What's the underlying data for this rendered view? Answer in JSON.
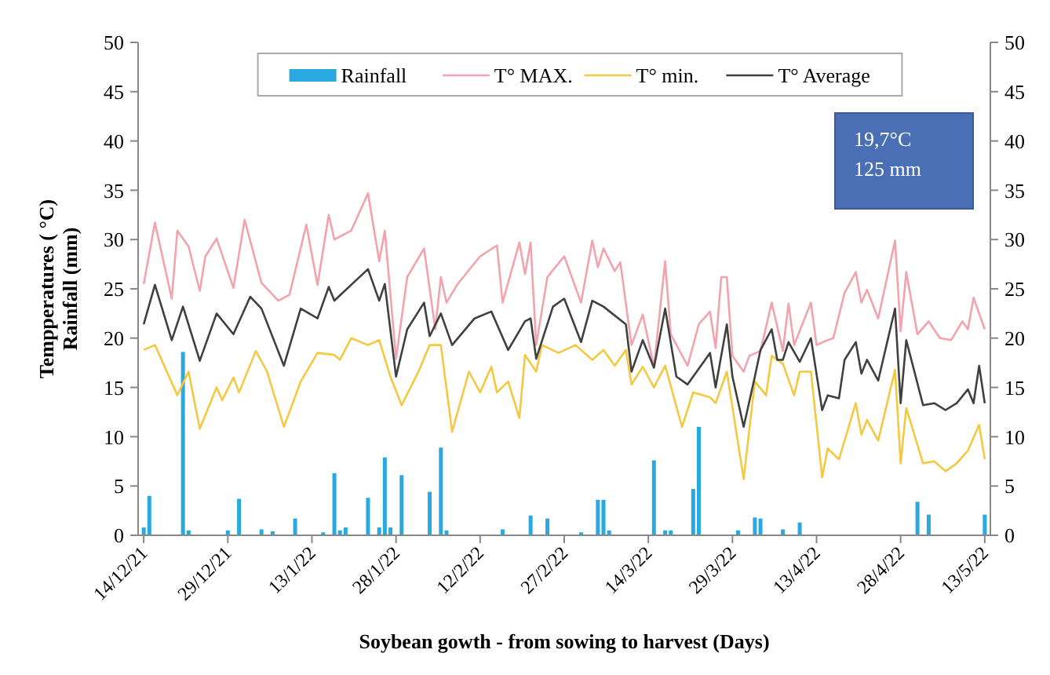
{
  "chart_data": {
    "type": "line",
    "ylabel": "Tempperatures ( °C)\nRainfall (mm)",
    "xlabel": "Soybean gowth  - from sowing to harvest (Days)",
    "xlim": [
      "2021-12-13",
      "2022-05-14"
    ],
    "xticks": [
      {
        "value": "2021-12-14",
        "label": "14/12/21"
      },
      {
        "value": "2021-12-29",
        "label": "29/12/21"
      },
      {
        "value": "2022-01-13",
        "label": "13/1/22"
      },
      {
        "value": "2022-01-28",
        "label": "28/1/22"
      },
      {
        "value": "2022-02-12",
        "label": "12/2/22"
      },
      {
        "value": "2022-02-27",
        "label": "27/2/22"
      },
      {
        "value": "2022-03-14",
        "label": "14/3/22"
      },
      {
        "value": "2022-03-29",
        "label": "29/3/22"
      },
      {
        "value": "2022-04-13",
        "label": "13/4/22"
      },
      {
        "value": "2022-04-28",
        "label": "28/4/22"
      },
      {
        "value": "2022-05-13",
        "label": "13/5/22"
      }
    ],
    "ylim": [
      0,
      50
    ],
    "yticks": [
      0,
      5,
      10,
      15,
      20,
      25,
      30,
      35,
      40,
      45,
      50
    ],
    "y2lim": [
      0,
      50
    ],
    "y2ticks": [
      0,
      5,
      10,
      15,
      20,
      25,
      30,
      35,
      40,
      45,
      50
    ],
    "legend": "top",
    "annotations": [
      "19,7°C",
      "125 mm"
    ],
    "series": [
      {
        "name": "Rainfall",
        "type": "bar",
        "color": "#29a9df",
        "x": [
          "2021-12-14",
          "2021-12-15",
          "2021-12-21",
          "2021-12-22",
          "2021-12-29",
          "2021-12-31",
          "2022-01-04",
          "2022-01-06",
          "2022-01-10",
          "2022-01-15",
          "2022-01-17",
          "2022-01-18",
          "2022-01-19",
          "2022-01-23",
          "2022-01-25",
          "2022-01-26",
          "2022-01-27",
          "2022-01-29",
          "2022-02-03",
          "2022-02-05",
          "2022-02-06",
          "2022-02-16",
          "2022-02-21",
          "2022-02-24",
          "2022-03-02",
          "2022-03-05",
          "2022-03-06",
          "2022-03-07",
          "2022-03-15",
          "2022-03-17",
          "2022-03-18",
          "2022-03-22",
          "2022-03-23",
          "2022-03-30",
          "2022-04-02",
          "2022-04-03",
          "2022-04-07",
          "2022-04-10",
          "2022-05-01",
          "2022-05-03",
          "2022-05-13"
        ],
        "values": [
          0.8,
          4.0,
          18.6,
          0.5,
          0.5,
          3.7,
          0.6,
          0.4,
          1.7,
          0.3,
          6.3,
          0.5,
          0.8,
          3.8,
          0.8,
          7.9,
          0.8,
          6.1,
          4.4,
          8.9,
          0.5,
          0.6,
          2.0,
          1.7,
          0.3,
          3.6,
          3.6,
          0.5,
          7.6,
          0.5,
          0.5,
          4.7,
          11,
          0.5,
          1.8,
          1.7,
          0.6,
          1.3,
          3.4,
          2.1,
          2.1
        ]
      },
      {
        "name": "T° MAX.",
        "color": "#f2a3ab",
        "x": [
          "2021-12-14",
          "2021-12-16",
          "2021-12-19",
          "2021-12-20",
          "2021-12-22",
          "2021-12-24",
          "2021-12-25",
          "2021-12-27",
          "2021-12-30",
          "2022-01-01",
          "2022-01-04",
          "2022-01-07",
          "2022-01-09",
          "2022-01-12",
          "2022-01-14",
          "2022-01-16",
          "2022-01-17",
          "2022-01-20",
          "2022-01-23",
          "2022-01-25",
          "2022-01-26",
          "2022-01-28",
          "2022-01-30",
          "2022-02-02",
          "2022-02-04",
          "2022-02-05",
          "2022-02-06",
          "2022-02-08",
          "2022-02-12",
          "2022-02-15",
          "2022-02-16",
          "2022-02-19",
          "2022-02-20",
          "2022-02-21",
          "2022-02-22",
          "2022-02-24",
          "2022-02-27",
          "2022-03-02",
          "2022-03-04",
          "2022-03-05",
          "2022-03-06",
          "2022-03-08",
          "2022-03-09",
          "2022-03-11",
          "2022-03-13",
          "2022-03-15",
          "2022-03-17",
          "2022-03-18",
          "2022-03-21",
          "2022-03-23",
          "2022-03-25",
          "2022-03-26",
          "2022-03-27",
          "2022-03-28",
          "2022-03-29",
          "2022-03-31",
          "2022-04-01",
          "2022-04-03",
          "2022-04-05",
          "2022-04-07",
          "2022-04-08",
          "2022-04-09",
          "2022-04-12",
          "2022-04-13",
          "2022-04-15",
          "2022-04-16",
          "2022-04-18",
          "2022-04-20",
          "2022-04-21",
          "2022-04-22",
          "2022-04-24",
          "2022-04-27",
          "2022-04-28",
          "2022-04-29",
          "2022-05-01",
          "2022-05-03",
          "2022-05-05",
          "2022-05-07",
          "2022-05-09",
          "2022-05-10",
          "2022-05-11",
          "2022-05-13"
        ],
        "values": [
          25.5,
          31.7,
          24,
          30.9,
          29.3,
          24.8,
          28.3,
          30.1,
          25.1,
          32,
          25.6,
          23.8,
          24.4,
          31.5,
          25.4,
          32.5,
          30,
          30.9,
          34.7,
          27.8,
          30.9,
          17.9,
          26.2,
          29.1,
          20.9,
          26.2,
          23.6,
          25.5,
          28.3,
          29.4,
          23.6,
          29.7,
          26.5,
          29.7,
          19.3,
          26.2,
          28.3,
          23.6,
          29.9,
          27.2,
          29.1,
          26.8,
          27.7,
          19.3,
          22.4,
          17.1,
          27.8,
          20.4,
          17.2,
          21.4,
          22.7,
          19,
          26.2,
          26.2,
          18.2,
          16.6,
          18.2,
          18.7,
          23.6,
          18.7,
          23.5,
          19.3,
          23.6,
          19.3,
          19.8,
          20,
          24.6,
          26.7,
          23.6,
          24.9,
          22,
          29.9,
          20.7,
          26.7,
          20.4,
          21.7,
          20,
          19.8,
          21.7,
          20.9,
          24.1,
          20.9
        ]
      },
      {
        "name": "T° min.",
        "color": "#f5c842",
        "x": [
          "2021-12-14",
          "2021-12-16",
          "2021-12-20",
          "2021-12-22",
          "2021-12-24",
          "2021-12-27",
          "2021-12-28",
          "2021-12-30",
          "2021-12-31",
          "2022-01-03",
          "2022-01-05",
          "2022-01-08",
          "2022-01-11",
          "2022-01-14",
          "2022-01-17",
          "2022-01-18",
          "2022-01-20",
          "2022-01-23",
          "2022-01-25",
          "2022-01-27",
          "2022-01-29",
          "2022-02-01",
          "2022-02-03",
          "2022-02-05",
          "2022-02-07",
          "2022-02-10",
          "2022-02-12",
          "2022-02-14",
          "2022-02-15",
          "2022-02-17",
          "2022-02-19",
          "2022-02-20",
          "2022-02-22",
          "2022-02-23",
          "2022-02-26",
          "2022-03-01",
          "2022-03-04",
          "2022-03-06",
          "2022-03-08",
          "2022-03-10",
          "2022-03-11",
          "2022-03-13",
          "2022-03-15",
          "2022-03-17",
          "2022-03-20",
          "2022-03-22",
          "2022-03-25",
          "2022-03-26",
          "2022-03-28",
          "2022-03-31",
          "2022-04-02",
          "2022-04-04",
          "2022-04-05",
          "2022-04-07",
          "2022-04-09",
          "2022-04-10",
          "2022-04-12",
          "2022-04-14",
          "2022-04-15",
          "2022-04-17",
          "2022-04-20",
          "2022-04-21",
          "2022-04-22",
          "2022-04-24",
          "2022-04-27",
          "2022-04-28",
          "2022-04-29",
          "2022-05-02",
          "2022-05-04",
          "2022-05-06",
          "2022-05-08",
          "2022-05-10",
          "2022-05-12",
          "2022-05-13"
        ],
        "values": [
          18.8,
          19.3,
          14.2,
          16.6,
          10.8,
          15,
          13.7,
          16,
          14.5,
          18.7,
          16.6,
          11,
          15.6,
          18.5,
          18.3,
          17.8,
          20,
          19.3,
          19.8,
          16.1,
          13.2,
          16.6,
          19.3,
          19.3,
          10.5,
          16.6,
          14.5,
          17.1,
          14.5,
          15.6,
          11.9,
          18.3,
          16.6,
          19.3,
          18.5,
          19.3,
          17.8,
          18.8,
          17.2,
          18.8,
          15.3,
          17.1,
          15,
          17.2,
          11,
          14.5,
          14,
          13.4,
          16.6,
          5.7,
          15.6,
          14.2,
          18.2,
          17.4,
          14.2,
          16.6,
          16.6,
          5.9,
          8.8,
          7.7,
          13.4,
          10.2,
          11.7,
          9.6,
          16.8,
          7.3,
          12.9,
          7.3,
          7.5,
          6.5,
          7.3,
          8.6,
          11.2,
          7.7
        ]
      },
      {
        "name": "T° Average",
        "color": "#404040",
        "x": [
          "2021-12-14",
          "2021-12-16",
          "2021-12-19",
          "2021-12-21",
          "2021-12-24",
          "2021-12-27",
          "2021-12-30",
          "2022-01-02",
          "2022-01-04",
          "2022-01-08",
          "2022-01-11",
          "2022-01-14",
          "2022-01-16",
          "2022-01-17",
          "2022-01-23",
          "2022-01-25",
          "2022-01-26",
          "2022-01-28",
          "2022-01-30",
          "2022-02-02",
          "2022-02-03",
          "2022-02-05",
          "2022-02-07",
          "2022-02-11",
          "2022-02-14",
          "2022-02-15",
          "2022-02-17",
          "2022-02-20",
          "2022-02-21",
          "2022-02-22",
          "2022-02-25",
          "2022-02-27",
          "2022-03-02",
          "2022-03-04",
          "2022-03-06",
          "2022-03-10",
          "2022-03-11",
          "2022-03-13",
          "2022-03-15",
          "2022-03-17",
          "2022-03-19",
          "2022-03-21",
          "2022-03-25",
          "2022-03-26",
          "2022-03-28",
          "2022-03-29",
          "2022-03-31",
          "2022-04-02",
          "2022-04-03",
          "2022-04-05",
          "2022-04-06",
          "2022-04-07",
          "2022-04-08",
          "2022-04-10",
          "2022-04-12",
          "2022-04-14",
          "2022-04-15",
          "2022-04-17",
          "2022-04-18",
          "2022-04-20",
          "2022-04-21",
          "2022-04-22",
          "2022-04-24",
          "2022-04-27",
          "2022-04-28",
          "2022-04-29",
          "2022-05-02",
          "2022-05-04",
          "2022-05-06",
          "2022-05-08",
          "2022-05-10",
          "2022-05-11",
          "2022-05-12",
          "2022-05-13"
        ],
        "values": [
          21.4,
          25.4,
          19.8,
          23.2,
          17.7,
          22.5,
          20.4,
          24.2,
          23,
          17.2,
          23,
          22,
          25.2,
          23.8,
          27,
          23.8,
          25.5,
          16.1,
          20.9,
          23.6,
          20.2,
          22.5,
          19.3,
          22,
          22.7,
          21.4,
          18.8,
          21.7,
          22,
          17.9,
          23.2,
          24,
          19.6,
          23.8,
          23.2,
          21.4,
          16.6,
          19.8,
          17,
          23,
          16.1,
          15.3,
          18.5,
          15,
          21.4,
          16.1,
          11,
          16.1,
          18.8,
          20.9,
          17.8,
          17.8,
          19.6,
          17.6,
          20,
          12.7,
          14.2,
          13.9,
          17.8,
          19.6,
          16.4,
          17.8,
          15.7,
          23,
          13.4,
          19.8,
          13.2,
          13.4,
          12.7,
          13.4,
          14.8,
          13.4,
          17.2,
          13.4
        ]
      }
    ]
  }
}
